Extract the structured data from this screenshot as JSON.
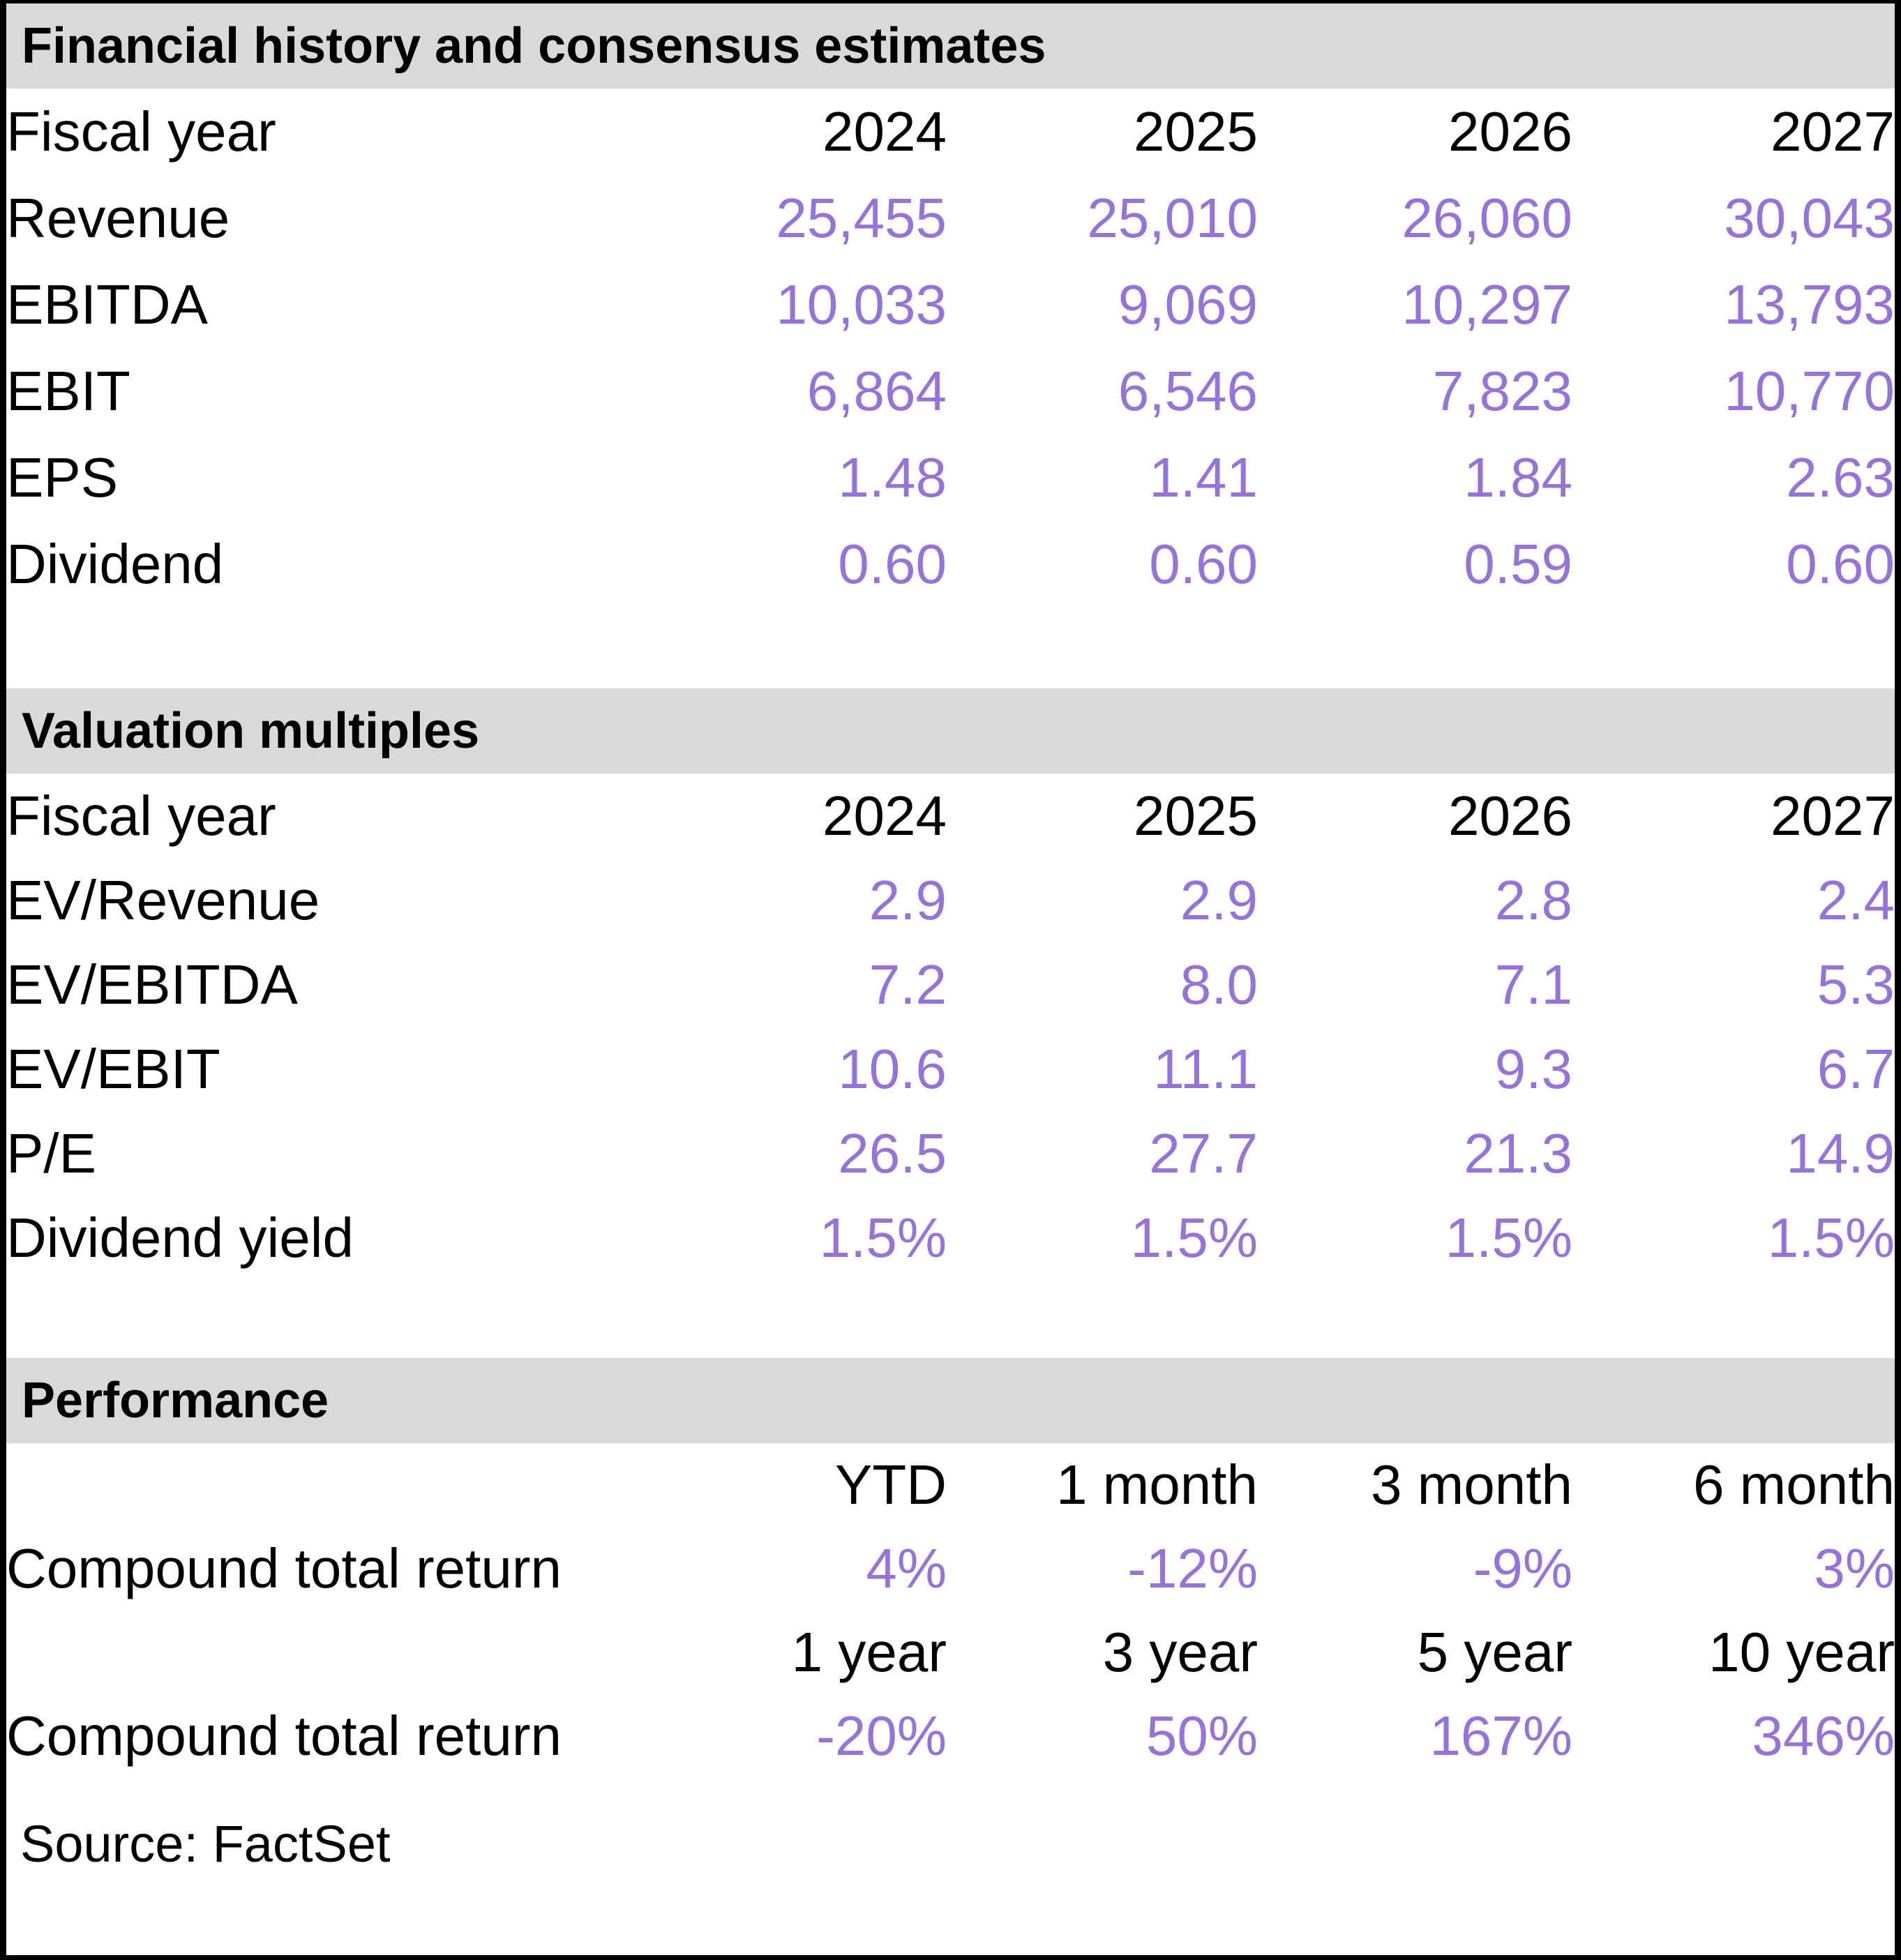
{
  "colors": {
    "value_purple": "#9673D9",
    "band_gray": "#D9D9D9",
    "text_black": "#000000"
  },
  "sections": [
    {
      "title": "Financial history and consensus estimates",
      "header_row": {
        "label": "Fiscal year",
        "values": [
          "2024",
          "2025",
          "2026",
          "2027"
        ]
      },
      "rows": [
        {
          "label": "Revenue",
          "values": [
            "25,455",
            "25,010",
            "26,060",
            "30,043"
          ]
        },
        {
          "label": "EBITDA",
          "values": [
            "10,033",
            "9,069",
            "10,297",
            "13,793"
          ]
        },
        {
          "label": "EBIT",
          "values": [
            "6,864",
            "6,546",
            "7,823",
            "10,770"
          ]
        },
        {
          "label": "EPS",
          "values": [
            "1.48",
            "1.41",
            "1.84",
            "2.63"
          ]
        },
        {
          "label": "Dividend",
          "values": [
            "0.60",
            "0.60",
            "0.59",
            "0.60"
          ]
        }
      ]
    },
    {
      "title": "Valuation multiples",
      "header_row": {
        "label": "Fiscal year",
        "values": [
          "2024",
          "2025",
          "2026",
          "2027"
        ]
      },
      "rows": [
        {
          "label": "EV/Revenue",
          "values": [
            "2.9",
            "2.9",
            "2.8",
            "2.4"
          ]
        },
        {
          "label": "EV/EBITDA",
          "values": [
            "7.2",
            "8.0",
            "7.1",
            "5.3"
          ]
        },
        {
          "label": "EV/EBIT",
          "values": [
            "10.6",
            "11.1",
            "9.3",
            "6.7"
          ]
        },
        {
          "label": "P/E",
          "values": [
            "26.5",
            "27.7",
            "21.3",
            "14.9"
          ]
        },
        {
          "label": "Dividend yield",
          "values": [
            "1.5%",
            "1.5%",
            "1.5%",
            "1.5%"
          ]
        }
      ]
    },
    {
      "title": "Performance",
      "groups": [
        {
          "header": {
            "label": "",
            "values": [
              "YTD",
              "1 month",
              "3 month",
              "6 month"
            ]
          },
          "row": {
            "label": "Compound total return",
            "values": [
              "4%",
              "-12%",
              "-9%",
              "3%"
            ]
          }
        },
        {
          "header": {
            "label": "",
            "values": [
              "1 year",
              "3 year",
              "5 year",
              "10 year"
            ]
          },
          "row": {
            "label": "Compound total return",
            "values": [
              "-20%",
              "50%",
              "167%",
              "346%"
            ]
          }
        }
      ]
    }
  ],
  "source": "Source: FactSet",
  "chart_data": [
    {
      "type": "table",
      "title": "Financial history and consensus estimates",
      "columns": [
        "Fiscal year",
        "2024",
        "2025",
        "2026",
        "2027"
      ],
      "rows": [
        [
          "Revenue",
          25455,
          25010,
          26060,
          30043
        ],
        [
          "EBITDA",
          10033,
          9069,
          10297,
          13793
        ],
        [
          "EBIT",
          6864,
          6546,
          7823,
          10770
        ],
        [
          "EPS",
          1.48,
          1.41,
          1.84,
          2.63
        ],
        [
          "Dividend",
          0.6,
          0.6,
          0.59,
          0.6
        ]
      ]
    },
    {
      "type": "table",
      "title": "Valuation multiples",
      "columns": [
        "Fiscal year",
        "2024",
        "2025",
        "2026",
        "2027"
      ],
      "rows": [
        [
          "EV/Revenue",
          2.9,
          2.9,
          2.8,
          2.4
        ],
        [
          "EV/EBITDA",
          7.2,
          8.0,
          7.1,
          5.3
        ],
        [
          "EV/EBIT",
          10.6,
          11.1,
          9.3,
          6.7
        ],
        [
          "P/E",
          26.5,
          27.7,
          21.3,
          14.9
        ],
        [
          "Dividend yield",
          "1.5%",
          "1.5%",
          "1.5%",
          "1.5%"
        ]
      ]
    },
    {
      "type": "table",
      "title": "Performance",
      "rows": [
        {
          "periods": [
            "YTD",
            "1 month",
            "3 month",
            "6 month"
          ],
          "compound_total_return": [
            "4%",
            "-12%",
            "-9%",
            "3%"
          ]
        },
        {
          "periods": [
            "1 year",
            "3 year",
            "5 year",
            "10 year"
          ],
          "compound_total_return": [
            "-20%",
            "50%",
            "167%",
            "346%"
          ]
        }
      ]
    }
  ]
}
